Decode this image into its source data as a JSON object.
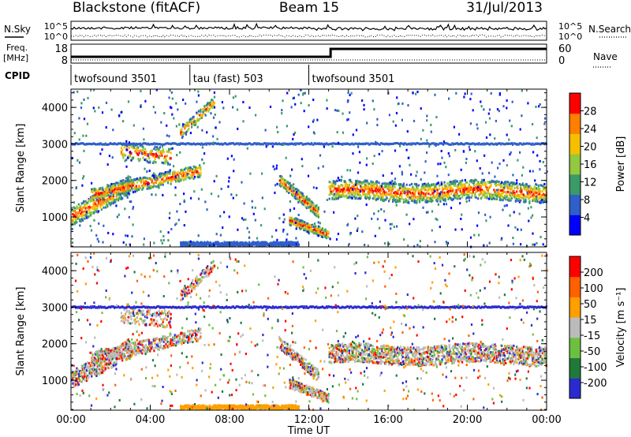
{
  "header": {
    "station": "Blackstone (fitACF)",
    "beam": "Beam 15",
    "date": "31/Jul/2013"
  },
  "strip": {
    "nsky_label": "N.Sky",
    "nsearch_label": "N.Search",
    "sky_ticks": [
      "10^5",
      "10^0"
    ],
    "search_ticks": [
      "10^5",
      "10^0"
    ],
    "freq_label": "Freq.",
    "freq_unit": "[MHz]",
    "freq_ticks": [
      "18",
      "8"
    ],
    "nave_label": "Nave",
    "nave_ticks": [
      "60",
      "0"
    ],
    "cpid_label": "CPID",
    "cpid_segments": [
      {
        "name": "twofsound 3501",
        "start_h": 0,
        "end_h": 6
      },
      {
        "name": "tau (fast) 503",
        "start_h": 6,
        "end_h": 12
      },
      {
        "name": "twofsound 3501",
        "start_h": 12,
        "end_h": 24
      }
    ]
  },
  "chart_data": [
    {
      "type": "heatmap",
      "title": "",
      "ylabel": "Slant Range [km]",
      "xlabel": "",
      "xlim": [
        0,
        24
      ],
      "ylim": [
        180,
        4500
      ],
      "y_ticks": [
        1000,
        2000,
        3000,
        4000
      ],
      "colorbar_label": "Power [dB]",
      "colorbar_ticks": [
        "28",
        "24",
        "20",
        "16",
        "12",
        "8",
        "4"
      ],
      "colors": [
        "#0000ff",
        "#2f5fc8",
        "#3a9a68",
        "#93c840",
        "#f5c000",
        "#ff7f00",
        "#ff0000"
      ]
    },
    {
      "type": "heatmap",
      "title": "",
      "ylabel": "Slant Range [km]",
      "xlabel": "Time UT",
      "xlim": [
        0,
        24
      ],
      "ylim": [
        180,
        4500
      ],
      "y_ticks": [
        1000,
        2000,
        3000,
        4000
      ],
      "x_ticks": [
        "00:00",
        "04:00",
        "08:00",
        "12:00",
        "16:00",
        "20:00",
        "00:00"
      ],
      "colorbar_label": "Velocity [m s⁻¹]",
      "colorbar_ticks": [
        "200",
        "100",
        "50",
        "15",
        "-15",
        "-50",
        "-100",
        "-200"
      ],
      "colors": [
        "#2a2ad0",
        "#1f7a3a",
        "#6cc040",
        "#bbbbbb",
        "#ff9f00",
        "#ff6000",
        "#ff0000"
      ]
    }
  ]
}
